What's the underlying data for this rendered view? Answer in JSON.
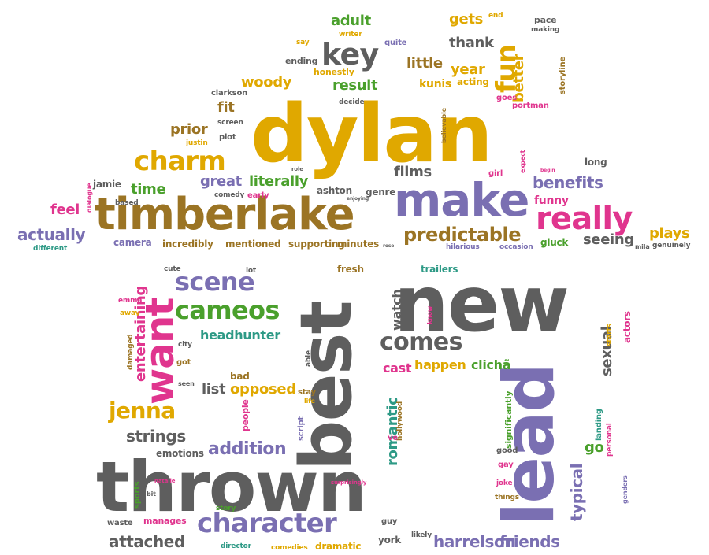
{
  "palette": {
    "gold": "#e0a800",
    "brown": "#9b7424",
    "purple": "#7a6fb2",
    "gray": "#5e5e5e",
    "pink": "#e0358e",
    "green": "#4aa02c",
    "teal": "#2e9a86"
  },
  "words": [
    {
      "text": "dylan",
      "color": "gold"
    },
    {
      "text": "timberlake",
      "color": "brown"
    },
    {
      "text": "thrown",
      "color": "gray"
    },
    {
      "text": "new",
      "color": "gray"
    },
    {
      "text": "lead",
      "color": "purple"
    },
    {
      "text": "best",
      "color": "gray"
    },
    {
      "text": "make",
      "color": "purple"
    },
    {
      "text": "really",
      "color": "pink"
    },
    {
      "text": "want",
      "color": "pink"
    },
    {
      "text": "fun",
      "color": "gold"
    },
    {
      "text": "key",
      "color": "gray"
    },
    {
      "text": "charm",
      "color": "gold"
    },
    {
      "text": "character",
      "color": "purple"
    },
    {
      "text": "scene",
      "color": "purple"
    },
    {
      "text": "cameos",
      "color": "green"
    },
    {
      "text": "comes",
      "color": "gray"
    },
    {
      "text": "predictable",
      "color": "brown"
    },
    {
      "text": "jenna",
      "color": "gold"
    },
    {
      "text": "attached",
      "color": "gray"
    },
    {
      "text": "harrelson",
      "color": "purple"
    },
    {
      "text": "friends",
      "color": "purple"
    },
    {
      "text": "addition",
      "color": "purple"
    },
    {
      "text": "strings",
      "color": "gray"
    },
    {
      "text": "actually",
      "color": "purple"
    },
    {
      "text": "benefits",
      "color": "purple"
    },
    {
      "text": "adult",
      "color": "green"
    },
    {
      "text": "gets",
      "color": "gold"
    },
    {
      "text": "thank",
      "color": "gray"
    },
    {
      "text": "year",
      "color": "gold"
    },
    {
      "text": "better",
      "color": "gold"
    },
    {
      "text": "little",
      "color": "brown"
    },
    {
      "text": "result",
      "color": "green"
    },
    {
      "text": "woody",
      "color": "gold"
    },
    {
      "text": "prior",
      "color": "brown"
    },
    {
      "text": "fit",
      "color": "brown"
    },
    {
      "text": "time",
      "color": "green"
    },
    {
      "text": "great",
      "color": "purple"
    },
    {
      "text": "literally",
      "color": "green"
    },
    {
      "text": "feel",
      "color": "pink"
    },
    {
      "text": "films",
      "color": "gray"
    },
    {
      "text": "seeing",
      "color": "gray"
    },
    {
      "text": "plays",
      "color": "gold"
    },
    {
      "text": "headhunter",
      "color": "teal"
    },
    {
      "text": "entertaining",
      "color": "pink"
    },
    {
      "text": "watch",
      "color": "gray"
    },
    {
      "text": "romantic",
      "color": "teal"
    },
    {
      "text": "cast",
      "color": "pink"
    },
    {
      "text": "happen",
      "color": "gold"
    },
    {
      "text": "clichã",
      "color": "green"
    },
    {
      "text": "sexual",
      "color": "gray"
    },
    {
      "text": "typical",
      "color": "purple"
    },
    {
      "text": "go",
      "color": "green"
    },
    {
      "text": "list",
      "color": "gray"
    },
    {
      "text": "opposed",
      "color": "gold"
    },
    {
      "text": "emotions",
      "color": "gray"
    },
    {
      "text": "dramatic",
      "color": "gold"
    },
    {
      "text": "york",
      "color": "gray"
    },
    {
      "text": "kunis",
      "color": "gold"
    },
    {
      "text": "acting",
      "color": "gold"
    },
    {
      "text": "ashton",
      "color": "gray"
    },
    {
      "text": "funny",
      "color": "pink"
    },
    {
      "text": "incredibly",
      "color": "brown"
    },
    {
      "text": "mentioned",
      "color": "brown"
    },
    {
      "text": "supporting",
      "color": "brown"
    },
    {
      "text": "minutes",
      "color": "brown"
    },
    {
      "text": "camera",
      "color": "purple"
    },
    {
      "text": "fresh",
      "color": "brown"
    },
    {
      "text": "trailers",
      "color": "teal"
    },
    {
      "text": "gluck",
      "color": "green"
    },
    {
      "text": "long",
      "color": "gray"
    },
    {
      "text": "jamie",
      "color": "gray"
    },
    {
      "text": "genre",
      "color": "gray"
    },
    {
      "text": "honestly",
      "color": "gold"
    },
    {
      "text": "ending",
      "color": "gray"
    },
    {
      "text": "quite",
      "color": "purple"
    },
    {
      "text": "pace",
      "color": "gray"
    },
    {
      "text": "making",
      "color": "gray"
    },
    {
      "text": "end",
      "color": "gold"
    },
    {
      "text": "writer",
      "color": "gold"
    },
    {
      "text": "say",
      "color": "gold"
    },
    {
      "text": "clarkson",
      "color": "gray"
    },
    {
      "text": "decide",
      "color": "gray"
    },
    {
      "text": "goes",
      "color": "pink"
    },
    {
      "text": "portman",
      "color": "pink"
    },
    {
      "text": "storyline",
      "color": "brown"
    },
    {
      "text": "screen",
      "color": "gray"
    },
    {
      "text": "plot",
      "color": "gray"
    },
    {
      "text": "justin",
      "color": "gold"
    },
    {
      "text": "believable",
      "color": "brown"
    },
    {
      "text": "expect",
      "color": "pink"
    },
    {
      "text": "girl",
      "color": "pink"
    },
    {
      "text": "comedy",
      "color": "gray"
    },
    {
      "text": "early",
      "color": "pink"
    },
    {
      "text": "based",
      "color": "gray"
    },
    {
      "text": "dialogue",
      "color": "pink"
    },
    {
      "text": "different",
      "color": "teal"
    },
    {
      "text": "hilarious",
      "color": "purple"
    },
    {
      "text": "occasion",
      "color": "purple"
    },
    {
      "text": "genuinely",
      "color": "gray"
    },
    {
      "text": "mila",
      "color": "gray"
    },
    {
      "text": "role",
      "color": "gray"
    },
    {
      "text": "enjoying",
      "color": "gray"
    },
    {
      "text": "rose",
      "color": "gray"
    },
    {
      "text": "begin",
      "color": "pink"
    },
    {
      "text": "cute",
      "color": "gray"
    },
    {
      "text": "lot",
      "color": "gray"
    },
    {
      "text": "emma",
      "color": "pink"
    },
    {
      "text": "away",
      "color": "gold"
    },
    {
      "text": "damaged",
      "color": "brown"
    },
    {
      "text": "city",
      "color": "gray"
    },
    {
      "text": "got",
      "color": "brown"
    },
    {
      "text": "seen",
      "color": "gray"
    },
    {
      "text": "able",
      "color": "gray"
    },
    {
      "text": "stay",
      "color": "brown"
    },
    {
      "text": "life",
      "color": "gold"
    },
    {
      "text": "script",
      "color": "purple"
    },
    {
      "text": "way",
      "color": "gray"
    },
    {
      "text": "hollywood",
      "color": "brown"
    },
    {
      "text": "ve",
      "color": "pink"
    },
    {
      "text": "bad",
      "color": "brown"
    },
    {
      "text": "people",
      "color": "pink"
    },
    {
      "text": "know",
      "color": "pink"
    },
    {
      "text": "starts",
      "color": "gold"
    },
    {
      "text": "actors",
      "color": "pink"
    },
    {
      "text": "landing",
      "color": "teal"
    },
    {
      "text": "personal",
      "color": "pink"
    },
    {
      "text": "significantly",
      "color": "green"
    },
    {
      "text": "good",
      "color": "gray"
    },
    {
      "text": "gay",
      "color": "pink"
    },
    {
      "text": "joke",
      "color": "pink"
    },
    {
      "text": "things",
      "color": "brown"
    },
    {
      "text": "genders",
      "color": "purple"
    },
    {
      "text": "sports",
      "color": "green"
    },
    {
      "text": "waste",
      "color": "gray"
    },
    {
      "text": "natalie",
      "color": "pink"
    },
    {
      "text": "bit",
      "color": "gray"
    },
    {
      "text": "manages",
      "color": "pink"
    },
    {
      "text": "story",
      "color": "green"
    },
    {
      "text": "surprisingly",
      "color": "pink"
    },
    {
      "text": "director",
      "color": "teal"
    },
    {
      "text": "comedies",
      "color": "gold"
    },
    {
      "text": "likely",
      "color": "gray"
    },
    {
      "text": "guy",
      "color": "gray"
    }
  ]
}
